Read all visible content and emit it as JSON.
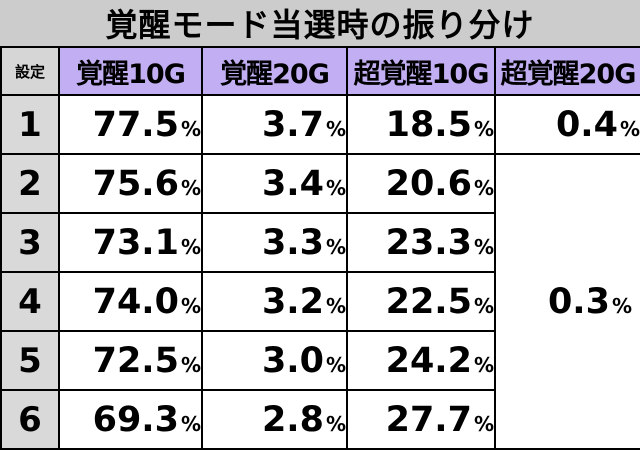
{
  "title": "覚醒モード当選時の振り分け",
  "header": {
    "setting": "設定",
    "columns": [
      "覚醒10G",
      "覚醒20G",
      "超覚醒10G",
      "超覚醒20G"
    ]
  },
  "rows": [
    {
      "setting": "1",
      "kakusei10": "77.5",
      "kakusei20": "3.7",
      "chou10": "18.5"
    },
    {
      "setting": "2",
      "kakusei10": "75.6",
      "kakusei20": "3.4",
      "chou10": "20.6"
    },
    {
      "setting": "3",
      "kakusei10": "73.1",
      "kakusei20": "3.3",
      "chou10": "23.3"
    },
    {
      "setting": "4",
      "kakusei10": "74.0",
      "kakusei20": "3.2",
      "chou10": "22.5"
    },
    {
      "setting": "5",
      "kakusei10": "72.5",
      "kakusei20": "3.0",
      "chou10": "24.2"
    },
    {
      "setting": "6",
      "kakusei10": "69.3",
      "kakusei20": "2.8",
      "chou10": "27.7"
    }
  ],
  "chou20": {
    "setting1": "0.4",
    "settings2to6": "0.3"
  },
  "percent_sign": "%",
  "colors": {
    "title_bg": "#cccccc",
    "header_bg": "#c2aef2",
    "setting_bg": "#d9d9d9"
  }
}
